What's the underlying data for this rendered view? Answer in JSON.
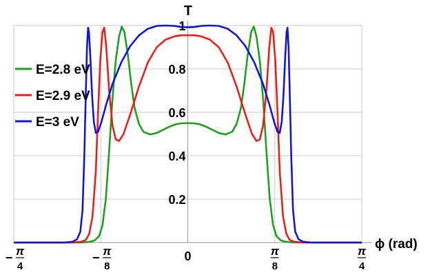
{
  "chart_data": {
    "type": "line",
    "ylabel": "T",
    "xlabel": "ϕ (rad)",
    "xlim": [
      -0.7854,
      0.7854
    ],
    "ylim": [
      0,
      1.0
    ],
    "grid": true,
    "legend_position": "left",
    "x_ticks": [
      {
        "value": -0.7854,
        "sign": "−",
        "numerator": "π",
        "denominator": "4"
      },
      {
        "value": -0.3927,
        "sign": "−",
        "numerator": "π",
        "denominator": "8"
      },
      {
        "value": 0,
        "sign": "",
        "numerator": "0",
        "denominator": ""
      },
      {
        "value": 0.3927,
        "sign": "",
        "numerator": "π",
        "denominator": "8"
      },
      {
        "value": 0.7854,
        "sign": "",
        "numerator": "π",
        "denominator": "4"
      }
    ],
    "y_ticks": [
      {
        "value": 0.2,
        "label": "0.2"
      },
      {
        "value": 0.4,
        "label": "0.4"
      },
      {
        "value": 0.6,
        "label": "0.6"
      },
      {
        "value": 0.8,
        "label": "0.8"
      },
      {
        "value": 1.0,
        "label": "1"
      }
    ],
    "series": [
      {
        "name": "E=2.8 eV",
        "color": "#1f9e1f",
        "points": [
          [
            -0.7854,
            0
          ],
          [
            -0.48,
            0
          ],
          [
            -0.44,
            0.004
          ],
          [
            -0.42,
            0.01
          ],
          [
            -0.4,
            0.03
          ],
          [
            -0.385,
            0.08
          ],
          [
            -0.37,
            0.2
          ],
          [
            -0.355,
            0.42
          ],
          [
            -0.34,
            0.66
          ],
          [
            -0.325,
            0.84
          ],
          [
            -0.31,
            0.95
          ],
          [
            -0.298,
            0.995
          ],
          [
            -0.286,
            0.97
          ],
          [
            -0.27,
            0.86
          ],
          [
            -0.255,
            0.73
          ],
          [
            -0.24,
            0.62
          ],
          [
            -0.22,
            0.545
          ],
          [
            -0.2,
            0.51
          ],
          [
            -0.17,
            0.498
          ],
          [
            -0.14,
            0.505
          ],
          [
            -0.11,
            0.52
          ],
          [
            -0.08,
            0.535
          ],
          [
            -0.05,
            0.546
          ],
          [
            -0.02,
            0.55
          ],
          [
            0,
            0.55
          ],
          [
            0.02,
            0.55
          ],
          [
            0.05,
            0.546
          ],
          [
            0.08,
            0.535
          ],
          [
            0.11,
            0.52
          ],
          [
            0.14,
            0.505
          ],
          [
            0.17,
            0.498
          ],
          [
            0.2,
            0.51
          ],
          [
            0.22,
            0.545
          ],
          [
            0.24,
            0.62
          ],
          [
            0.255,
            0.73
          ],
          [
            0.27,
            0.86
          ],
          [
            0.286,
            0.97
          ],
          [
            0.298,
            0.995
          ],
          [
            0.31,
            0.95
          ],
          [
            0.325,
            0.84
          ],
          [
            0.34,
            0.66
          ],
          [
            0.355,
            0.42
          ],
          [
            0.37,
            0.2
          ],
          [
            0.385,
            0.08
          ],
          [
            0.4,
            0.03
          ],
          [
            0.42,
            0.01
          ],
          [
            0.44,
            0.004
          ],
          [
            0.48,
            0
          ],
          [
            0.7854,
            0
          ]
        ]
      },
      {
        "name": "E=2.9 eV",
        "color": "#e8201c",
        "points": [
          [
            -0.7854,
            0
          ],
          [
            -0.52,
            0
          ],
          [
            -0.48,
            0.004
          ],
          [
            -0.46,
            0.012
          ],
          [
            -0.445,
            0.04
          ],
          [
            -0.43,
            0.12
          ],
          [
            -0.415,
            0.33
          ],
          [
            -0.405,
            0.6
          ],
          [
            -0.395,
            0.84
          ],
          [
            -0.385,
            0.97
          ],
          [
            -0.377,
            0.99
          ],
          [
            -0.368,
            0.9
          ],
          [
            -0.355,
            0.7
          ],
          [
            -0.34,
            0.54
          ],
          [
            -0.325,
            0.475
          ],
          [
            -0.31,
            0.468
          ],
          [
            -0.29,
            0.5
          ],
          [
            -0.26,
            0.59
          ],
          [
            -0.22,
            0.72
          ],
          [
            -0.18,
            0.83
          ],
          [
            -0.14,
            0.9
          ],
          [
            -0.1,
            0.935
          ],
          [
            -0.06,
            0.95
          ],
          [
            -0.03,
            0.955
          ],
          [
            0,
            0.955
          ],
          [
            0.03,
            0.955
          ],
          [
            0.06,
            0.95
          ],
          [
            0.1,
            0.935
          ],
          [
            0.14,
            0.9
          ],
          [
            0.18,
            0.83
          ],
          [
            0.22,
            0.72
          ],
          [
            0.26,
            0.59
          ],
          [
            0.29,
            0.5
          ],
          [
            0.31,
            0.468
          ],
          [
            0.325,
            0.475
          ],
          [
            0.34,
            0.54
          ],
          [
            0.355,
            0.7
          ],
          [
            0.368,
            0.9
          ],
          [
            0.377,
            0.99
          ],
          [
            0.385,
            0.97
          ],
          [
            0.395,
            0.84
          ],
          [
            0.405,
            0.6
          ],
          [
            0.415,
            0.33
          ],
          [
            0.43,
            0.12
          ],
          [
            0.445,
            0.04
          ],
          [
            0.46,
            0.012
          ],
          [
            0.48,
            0.004
          ],
          [
            0.52,
            0
          ],
          [
            0.7854,
            0
          ]
        ]
      },
      {
        "name": "E=3 eV",
        "color": "#1414d8",
        "points": [
          [
            -0.7854,
            0
          ],
          [
            -0.56,
            0
          ],
          [
            -0.52,
            0.004
          ],
          [
            -0.5,
            0.015
          ],
          [
            -0.485,
            0.05
          ],
          [
            -0.475,
            0.15
          ],
          [
            -0.467,
            0.4
          ],
          [
            -0.46,
            0.7
          ],
          [
            -0.455,
            0.9
          ],
          [
            -0.45,
            0.99
          ],
          [
            -0.446,
            0.97
          ],
          [
            -0.44,
            0.86
          ],
          [
            -0.432,
            0.68
          ],
          [
            -0.424,
            0.555
          ],
          [
            -0.415,
            0.505
          ],
          [
            -0.405,
            0.51
          ],
          [
            -0.39,
            0.555
          ],
          [
            -0.37,
            0.63
          ],
          [
            -0.34,
            0.73
          ],
          [
            -0.3,
            0.83
          ],
          [
            -0.26,
            0.905
          ],
          [
            -0.22,
            0.955
          ],
          [
            -0.18,
            0.985
          ],
          [
            -0.14,
            0.998
          ],
          [
            -0.1,
            1.0
          ],
          [
            -0.06,
            0.998
          ],
          [
            -0.03,
            0.993
          ],
          [
            0,
            0.992
          ],
          [
            0.03,
            0.993
          ],
          [
            0.06,
            0.998
          ],
          [
            0.1,
            1.0
          ],
          [
            0.14,
            0.998
          ],
          [
            0.18,
            0.985
          ],
          [
            0.22,
            0.955
          ],
          [
            0.26,
            0.905
          ],
          [
            0.3,
            0.83
          ],
          [
            0.34,
            0.73
          ],
          [
            0.37,
            0.63
          ],
          [
            0.39,
            0.555
          ],
          [
            0.405,
            0.51
          ],
          [
            0.415,
            0.505
          ],
          [
            0.424,
            0.555
          ],
          [
            0.432,
            0.68
          ],
          [
            0.44,
            0.86
          ],
          [
            0.446,
            0.97
          ],
          [
            0.45,
            0.99
          ],
          [
            0.455,
            0.9
          ],
          [
            0.46,
            0.7
          ],
          [
            0.467,
            0.4
          ],
          [
            0.475,
            0.15
          ],
          [
            0.485,
            0.05
          ],
          [
            0.5,
            0.015
          ],
          [
            0.52,
            0.004
          ],
          [
            0.56,
            0
          ],
          [
            0.7854,
            0
          ]
        ]
      }
    ]
  }
}
